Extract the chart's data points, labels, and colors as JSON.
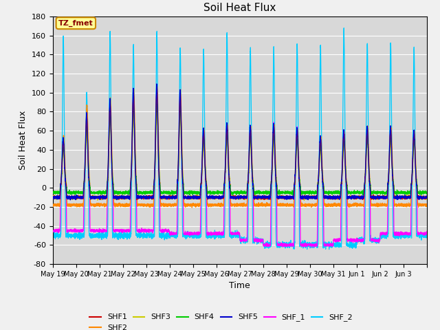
{
  "title": "Soil Heat Flux",
  "xlabel": "Time",
  "ylabel": "Soil Heat Flux",
  "ylim": [
    -80,
    180
  ],
  "yticks": [
    -80,
    -60,
    -40,
    -20,
    0,
    20,
    40,
    60,
    80,
    100,
    120,
    140,
    160,
    180
  ],
  "plot_bg_color": "#d8d8d8",
  "fig_bg_color": "#f0f0f0",
  "annotation_text": "TZ_fmet",
  "annotation_bg": "#ffff99",
  "annotation_border": "#cc8800",
  "annotation_text_color": "#880000",
  "series_colors": {
    "SHF1": "#cc0000",
    "SHF2": "#ff8800",
    "SHF3": "#cccc00",
    "SHF4": "#00cc00",
    "SHF5": "#0000cc",
    "SHF_1": "#ff00ff",
    "SHF_2": "#00ccff"
  },
  "x_tick_labels": [
    "May 19",
    "May 20",
    "May 21",
    "May 22",
    "May 23",
    "May 24",
    "May 25",
    "May 26",
    "May 27",
    "May 28",
    "May 29",
    "May 30",
    "May 31",
    "Jun 1",
    "Jun 2",
    "Jun 3"
  ],
  "num_days": 16,
  "pts_per_day": 288
}
